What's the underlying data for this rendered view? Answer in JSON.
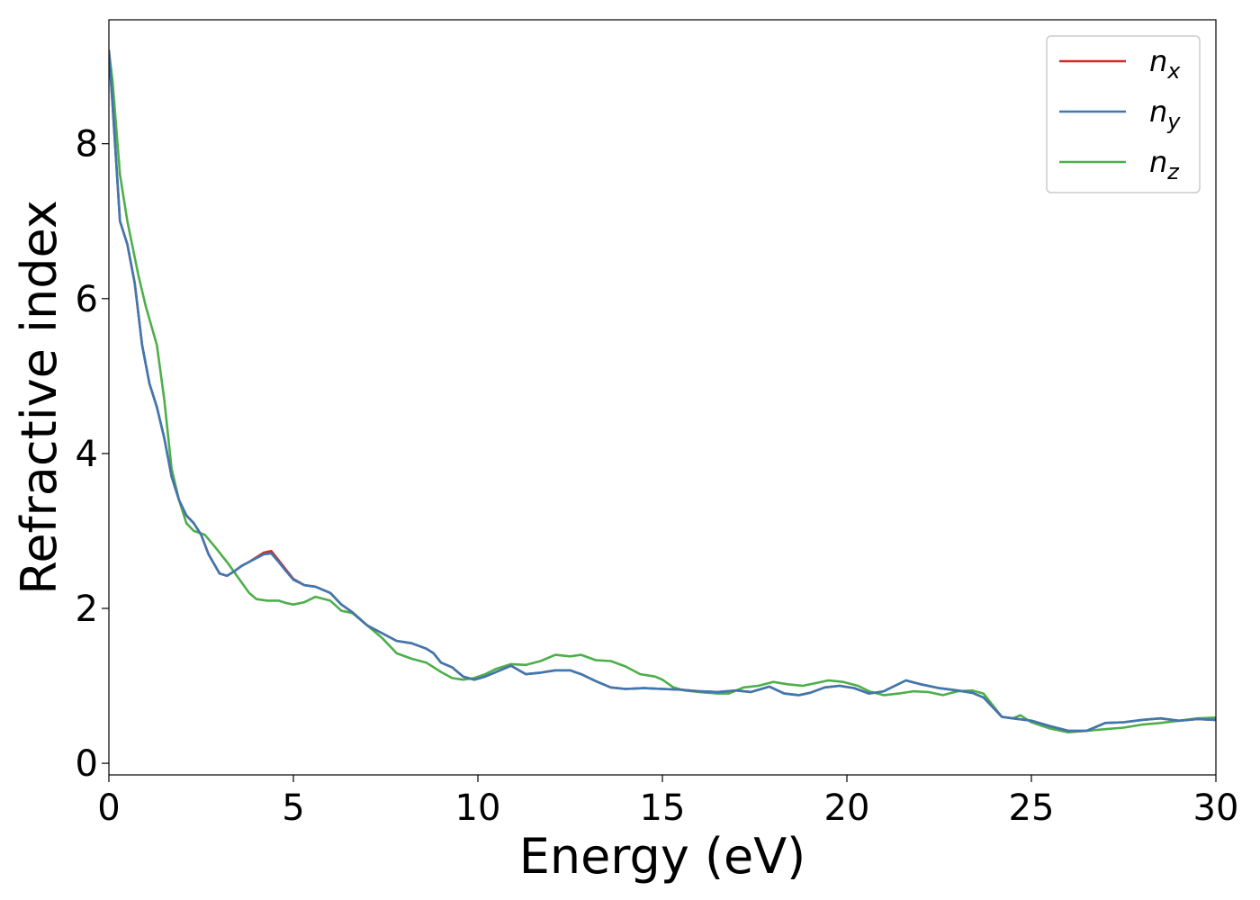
{
  "chart_data": {
    "type": "line",
    "title": "",
    "xlabel": "Energy (eV)",
    "ylabel": "Refractive index",
    "xlim": [
      0,
      30
    ],
    "ylim": [
      -0.15,
      9.6
    ],
    "xticks": [
      0,
      5,
      10,
      15,
      20,
      25,
      30
    ],
    "yticks": [
      0,
      2,
      4,
      6,
      8
    ],
    "grid": false,
    "legend_position": "top-right",
    "series": [
      {
        "name": "n_x",
        "label_base": "n",
        "label_sub": "x",
        "color": "#d62728",
        "x": [
          0,
          0.1,
          0.3,
          0.5,
          0.7,
          0.9,
          1.1,
          1.3,
          1.5,
          1.7,
          1.9,
          2.1,
          2.3,
          2.5,
          2.7,
          3.0,
          3.2,
          3.4,
          3.6,
          3.8,
          4.0,
          4.2,
          4.4,
          4.6,
          4.8,
          5.0,
          5.3,
          5.6,
          6.0,
          6.3,
          6.6,
          7.0,
          7.4,
          7.8,
          8.2,
          8.6,
          8.8,
          9.0,
          9.3,
          9.6,
          9.9,
          10.2,
          10.5,
          10.9,
          11.3,
          11.7,
          12.1,
          12.5,
          12.8,
          13.2,
          13.6,
          14.0,
          14.5,
          15.0,
          15.5,
          16.0,
          16.5,
          17.0,
          17.4,
          17.9,
          18.3,
          18.7,
          19.0,
          19.4,
          19.8,
          20.2,
          20.6,
          21.0,
          21.3,
          21.6,
          22.0,
          22.5,
          23.0,
          23.4,
          23.7,
          24.0,
          24.2,
          24.5,
          25.0,
          25.5,
          26.0,
          26.5,
          27.0,
          27.5,
          28.0,
          28.5,
          29.0,
          29.5,
          30.0
        ],
        "y": [
          9.2,
          8.5,
          7.0,
          6.7,
          6.2,
          5.4,
          4.9,
          4.6,
          4.2,
          3.7,
          3.4,
          3.2,
          3.1,
          2.95,
          2.7,
          2.45,
          2.42,
          2.48,
          2.55,
          2.6,
          2.66,
          2.72,
          2.74,
          2.62,
          2.5,
          2.38,
          2.3,
          2.28,
          2.2,
          2.05,
          1.95,
          1.78,
          1.68,
          1.58,
          1.55,
          1.48,
          1.42,
          1.3,
          1.24,
          1.12,
          1.08,
          1.12,
          1.18,
          1.26,
          1.15,
          1.17,
          1.2,
          1.2,
          1.15,
          1.06,
          0.98,
          0.96,
          0.97,
          0.96,
          0.95,
          0.93,
          0.92,
          0.94,
          0.92,
          0.99,
          0.9,
          0.88,
          0.91,
          0.98,
          1.0,
          0.97,
          0.9,
          0.93,
          1.0,
          1.07,
          1.02,
          0.97,
          0.94,
          0.91,
          0.85,
          0.7,
          0.6,
          0.58,
          0.55,
          0.48,
          0.42,
          0.42,
          0.52,
          0.53,
          0.56,
          0.58,
          0.55,
          0.57,
          0.56
        ]
      },
      {
        "name": "n_y",
        "label_base": "n",
        "label_sub": "y",
        "color": "#3d78b0",
        "x": [
          0,
          0.1,
          0.3,
          0.5,
          0.7,
          0.9,
          1.1,
          1.3,
          1.5,
          1.7,
          1.9,
          2.1,
          2.3,
          2.5,
          2.7,
          3.0,
          3.2,
          3.4,
          3.6,
          3.8,
          4.0,
          4.2,
          4.4,
          4.6,
          4.8,
          5.0,
          5.3,
          5.6,
          6.0,
          6.3,
          6.6,
          7.0,
          7.4,
          7.8,
          8.2,
          8.6,
          8.8,
          9.0,
          9.3,
          9.6,
          9.9,
          10.2,
          10.5,
          10.9,
          11.3,
          11.7,
          12.1,
          12.5,
          12.8,
          13.2,
          13.6,
          14.0,
          14.5,
          15.0,
          15.5,
          16.0,
          16.5,
          17.0,
          17.4,
          17.9,
          18.3,
          18.7,
          19.0,
          19.4,
          19.8,
          20.2,
          20.6,
          21.0,
          21.3,
          21.6,
          22.0,
          22.5,
          23.0,
          23.4,
          23.7,
          24.0,
          24.2,
          24.5,
          25.0,
          25.5,
          26.0,
          26.5,
          27.0,
          27.5,
          28.0,
          28.5,
          29.0,
          29.5,
          30.0
        ],
        "y": [
          9.2,
          8.5,
          7.0,
          6.7,
          6.2,
          5.4,
          4.9,
          4.6,
          4.2,
          3.7,
          3.4,
          3.2,
          3.1,
          2.95,
          2.7,
          2.45,
          2.42,
          2.48,
          2.55,
          2.6,
          2.65,
          2.7,
          2.71,
          2.6,
          2.48,
          2.37,
          2.3,
          2.28,
          2.2,
          2.05,
          1.95,
          1.78,
          1.68,
          1.58,
          1.55,
          1.48,
          1.42,
          1.3,
          1.24,
          1.12,
          1.08,
          1.12,
          1.18,
          1.26,
          1.15,
          1.17,
          1.2,
          1.2,
          1.15,
          1.06,
          0.98,
          0.96,
          0.97,
          0.96,
          0.95,
          0.93,
          0.92,
          0.94,
          0.92,
          0.99,
          0.9,
          0.88,
          0.91,
          0.98,
          1.0,
          0.97,
          0.9,
          0.93,
          1.0,
          1.07,
          1.02,
          0.97,
          0.94,
          0.91,
          0.85,
          0.7,
          0.6,
          0.58,
          0.55,
          0.48,
          0.42,
          0.42,
          0.52,
          0.53,
          0.56,
          0.58,
          0.55,
          0.57,
          0.56
        ]
      },
      {
        "name": "n_z",
        "label_base": "n",
        "label_sub": "z",
        "color": "#4daf4a",
        "x": [
          0,
          0.1,
          0.3,
          0.5,
          0.8,
          1.0,
          1.3,
          1.5,
          1.7,
          1.9,
          2.1,
          2.3,
          2.6,
          2.9,
          3.2,
          3.5,
          3.8,
          4.0,
          4.3,
          4.6,
          4.8,
          5.0,
          5.3,
          5.6,
          6.0,
          6.3,
          6.6,
          7.0,
          7.4,
          7.8,
          8.2,
          8.6,
          9.0,
          9.3,
          9.6,
          9.9,
          10.2,
          10.5,
          10.9,
          11.3,
          11.7,
          12.1,
          12.5,
          12.8,
          13.2,
          13.6,
          14.0,
          14.4,
          14.8,
          15.0,
          15.3,
          15.6,
          16.0,
          16.5,
          16.8,
          17.2,
          17.6,
          18.0,
          18.4,
          18.8,
          19.2,
          19.5,
          19.9,
          20.3,
          20.6,
          21.0,
          21.4,
          21.8,
          22.2,
          22.6,
          23.0,
          23.4,
          23.7,
          24.0,
          24.2,
          24.5,
          24.7,
          25.0,
          25.5,
          26.0,
          26.5,
          27.0,
          27.5,
          28.0,
          28.5,
          29.0,
          29.5,
          30.0
        ],
        "y": [
          9.2,
          8.8,
          7.6,
          7.0,
          6.3,
          5.9,
          5.4,
          4.7,
          3.8,
          3.4,
          3.1,
          3.0,
          2.95,
          2.78,
          2.6,
          2.4,
          2.2,
          2.12,
          2.1,
          2.1,
          2.07,
          2.05,
          2.08,
          2.15,
          2.1,
          1.97,
          1.94,
          1.78,
          1.62,
          1.42,
          1.35,
          1.3,
          1.18,
          1.1,
          1.08,
          1.1,
          1.15,
          1.22,
          1.28,
          1.27,
          1.32,
          1.4,
          1.38,
          1.4,
          1.33,
          1.32,
          1.25,
          1.15,
          1.12,
          1.08,
          0.98,
          0.94,
          0.92,
          0.9,
          0.9,
          0.98,
          1.0,
          1.05,
          1.02,
          1.0,
          1.04,
          1.07,
          1.05,
          1.0,
          0.93,
          0.88,
          0.9,
          0.93,
          0.92,
          0.88,
          0.93,
          0.94,
          0.9,
          0.72,
          0.6,
          0.58,
          0.62,
          0.53,
          0.45,
          0.4,
          0.42,
          0.44,
          0.46,
          0.5,
          0.52,
          0.55,
          0.58,
          0.59
        ]
      }
    ]
  }
}
